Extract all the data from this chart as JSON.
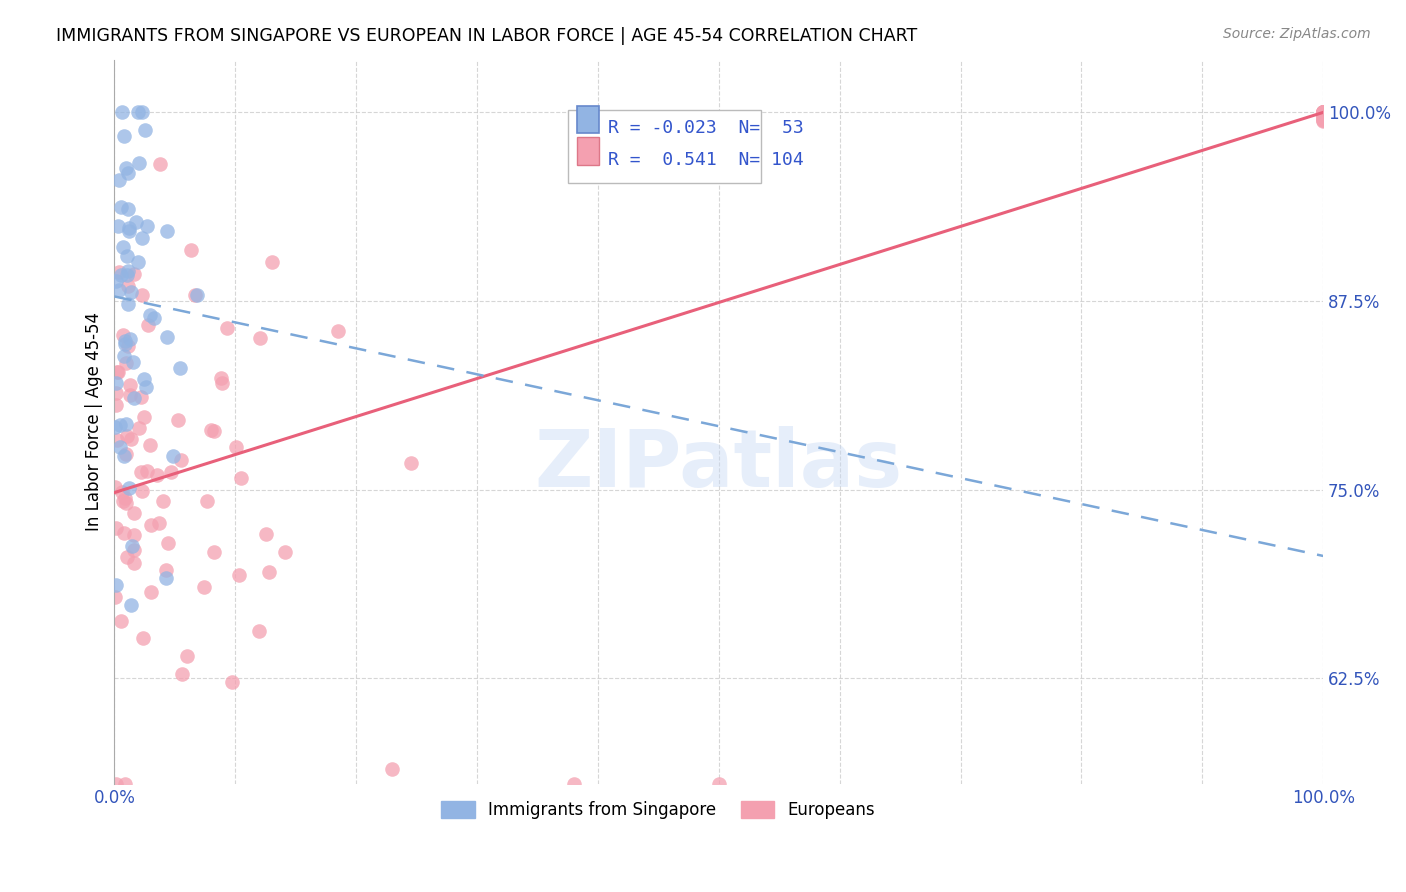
{
  "title": "IMMIGRANTS FROM SINGAPORE VS EUROPEAN IN LABOR FORCE | AGE 45-54 CORRELATION CHART",
  "source": "Source: ZipAtlas.com",
  "ylabel": "In Labor Force | Age 45-54",
  "xlim": [
    0.0,
    1.0
  ],
  "ylim": [
    0.555,
    1.035
  ],
  "yticks": [
    0.625,
    0.75,
    0.875,
    1.0
  ],
  "ytick_labels": [
    "62.5%",
    "75.0%",
    "87.5%",
    "100.0%"
  ],
  "xtick_labels": [
    "0.0%",
    "",
    "",
    "",
    "",
    "",
    "",
    "",
    "",
    "",
    "100.0%"
  ],
  "singapore_color": "#92b4e3",
  "european_color": "#f4a0b0",
  "singapore_line_color": "#7ba7d8",
  "european_line_color": "#e8607a",
  "singapore_R": -0.023,
  "singapore_N": 53,
  "european_R": 0.541,
  "european_N": 104,
  "watermark": "ZIPatlas",
  "sing_line_x0": 0.0,
  "sing_line_y0": 0.878,
  "sing_line_x1": 1.0,
  "sing_line_y1": 0.706,
  "euro_line_x0": 0.0,
  "euro_line_y0": 0.748,
  "euro_line_x1": 1.0,
  "euro_line_y1": 1.0
}
